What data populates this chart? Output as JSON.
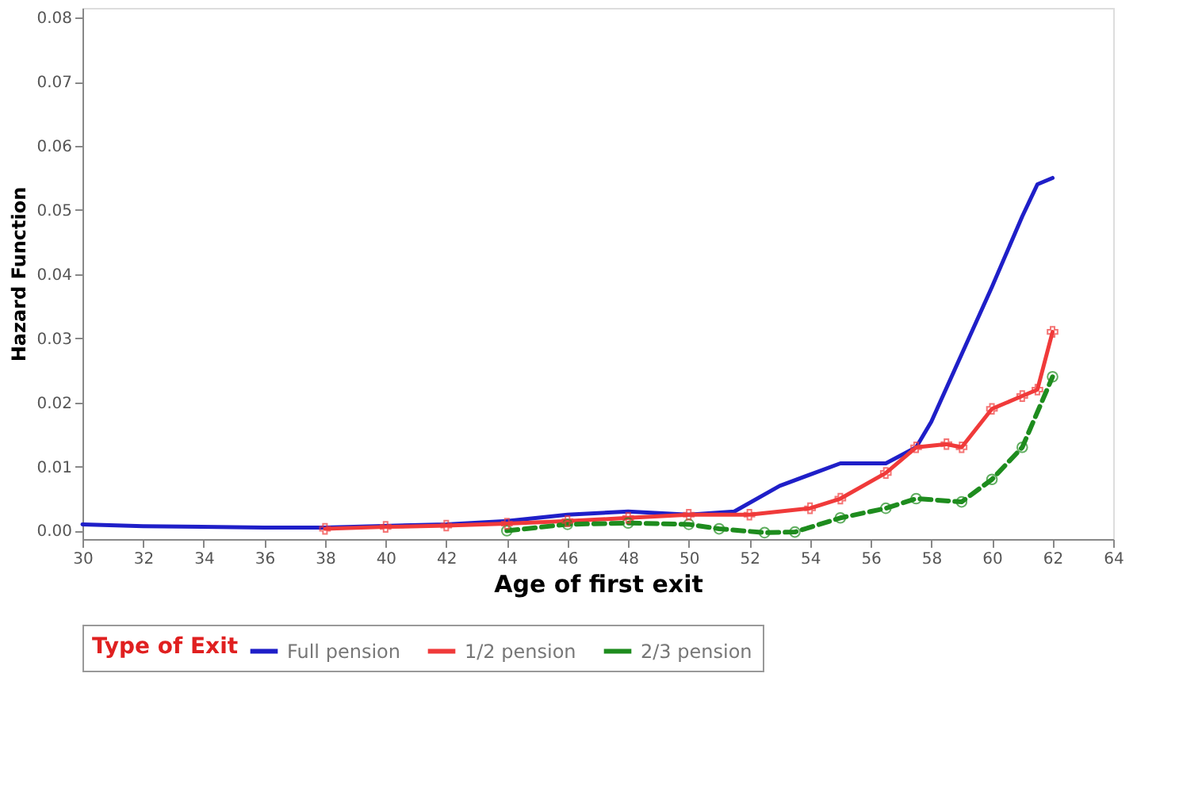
{
  "chart_data": {
    "type": "line",
    "xlabel": "Age of first exit",
    "ylabel": "Hazard Function",
    "legend_title": "Type of Exit",
    "legend": "bottom",
    "grid": false,
    "xlim": [
      30,
      64
    ],
    "xticks": [
      30,
      32,
      34,
      36,
      38,
      40,
      42,
      44,
      46,
      48,
      50,
      52,
      54,
      56,
      58,
      60,
      62,
      64
    ],
    "ylim": [
      -0.0013,
      0.0815
    ],
    "yticks": [
      {
        "value": 0,
        "label": "0.00"
      },
      {
        "value": 0.01,
        "label": "0.01"
      },
      {
        "value": 0.02,
        "label": "0.02"
      },
      {
        "value": 0.03,
        "label": "0.03"
      },
      {
        "value": 0.04,
        "label": "0.04"
      },
      {
        "value": 0.05,
        "label": "0.05"
      },
      {
        "value": 0.06,
        "label": "0.06"
      },
      {
        "value": 0.07,
        "label": "0.07"
      },
      {
        "value": 0.08,
        "label": "0.08"
      }
    ],
    "series": [
      {
        "name": "Full pension",
        "color": "#1f1fc8",
        "marker": "none",
        "line_style": "solid",
        "x": [
          30,
          32,
          36,
          38,
          42,
          44,
          46,
          48,
          50,
          51.5,
          53,
          55,
          56.5,
          57.5,
          58,
          60,
          61,
          61.5,
          62
        ],
        "values": [
          0.001,
          0.0007,
          0.0005,
          0.0005,
          0.001,
          0.0015,
          0.0025,
          0.003,
          0.0025,
          0.003,
          0.007,
          0.0105,
          0.0105,
          0.013,
          0.017,
          0.038,
          0.049,
          0.054,
          0.055
        ]
      },
      {
        "name": "1/2 pension",
        "color": "#f03a3a",
        "marker": "cross",
        "line_style": "solid",
        "x": [
          38,
          40,
          42,
          44,
          46,
          48,
          50,
          52,
          54,
          55,
          56.5,
          57.5,
          58.5,
          59,
          60,
          61,
          61.5,
          62
        ],
        "values": [
          0.0003,
          0.0006,
          0.0008,
          0.0011,
          0.0015,
          0.002,
          0.0025,
          0.0025,
          0.0035,
          0.005,
          0.009,
          0.013,
          0.0135,
          0.013,
          0.019,
          0.021,
          0.022,
          0.031
        ]
      },
      {
        "name": "2/3 pension",
        "color": "#1e8c1e",
        "marker": "circle",
        "line_style": "dashed",
        "x": [
          44,
          46,
          48,
          50,
          51,
          52.5,
          53.5,
          55,
          56.5,
          57.5,
          59,
          60,
          61,
          62
        ],
        "values": [
          0.0,
          0.001,
          0.0012,
          0.001,
          0.0003,
          -0.0003,
          -0.0002,
          0.002,
          0.0035,
          0.005,
          0.0045,
          0.008,
          0.013,
          0.024
        ]
      }
    ]
  }
}
